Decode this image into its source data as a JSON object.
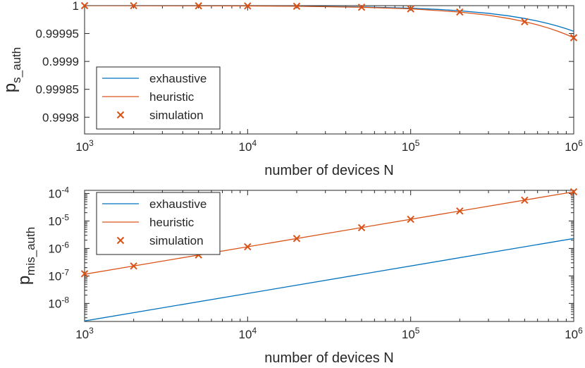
{
  "chart_data": [
    {
      "type": "line",
      "xscale": "log",
      "yscale": "linear",
      "xlim": [
        1000,
        1000000
      ],
      "ylim": [
        0.99977,
        1.0
      ],
      "xlabel": "number of devices N",
      "ylabel_main": "p",
      "ylabel_sub": "s_auth",
      "x_ticks": [
        {
          "base": "10",
          "exp": "3",
          "value": 1000
        },
        {
          "base": "10",
          "exp": "4",
          "value": 10000
        },
        {
          "base": "10",
          "exp": "5",
          "value": 100000
        },
        {
          "base": "10",
          "exp": "6",
          "value": 1000000
        }
      ],
      "y_ticks": [
        {
          "label": "1",
          "value": 1.0
        },
        {
          "label": "0.99995",
          "value": 0.99995
        },
        {
          "label": "0.9999",
          "value": 0.9999
        },
        {
          "label": "0.99985",
          "value": 0.99985
        },
        {
          "label": "0.9998",
          "value": 0.9998
        }
      ],
      "grid": false,
      "legend": {
        "position": "bottom-left",
        "entries": [
          "exhaustive",
          "heuristic",
          "simulation"
        ]
      },
      "series": [
        {
          "name": "exhaustive",
          "style": "line",
          "color": "#0072BD",
          "x": [
            1000,
            2000,
            5000,
            10000,
            20000,
            50000,
            100000,
            150000,
            200000,
            300000,
            400000,
            500000,
            600000,
            700000,
            800000,
            900000,
            1000000
          ],
          "y": [
            1.0,
            1.0,
            0.99999977,
            0.99999954,
            0.99999908,
            0.9999977,
            0.9999954,
            0.9999931,
            0.9999908,
            0.9999862,
            0.9999816,
            0.999977,
            0.9999724,
            0.9999678,
            0.9999632,
            0.9999586,
            0.999954
          ]
        },
        {
          "name": "heuristic",
          "style": "line",
          "color": "#D95319",
          "x": [
            1000,
            2000,
            5000,
            10000,
            20000,
            50000,
            100000,
            200000,
            300000,
            400000,
            500000,
            600000,
            700000,
            800000,
            900000,
            1000000
          ],
          "y": [
            1.0,
            0.99999989,
            0.9999997,
            0.99999943,
            0.99999885,
            0.9999971,
            0.9999943,
            0.9999885,
            0.9999828,
            0.999977,
            0.9999712,
            0.9999655,
            0.9999598,
            0.999954,
            0.9999483,
            0.9999425
          ]
        },
        {
          "name": "simulation",
          "style": "marker-x",
          "color": "#D95319",
          "x": [
            1000,
            2000,
            5000,
            10000,
            20000,
            50000,
            100000,
            200000,
            500000,
            1000000
          ],
          "y": [
            1.0,
            0.9999999,
            0.9999997,
            0.9999994,
            0.9999989,
            0.9999971,
            0.9999943,
            0.9999885,
            0.9999712,
            0.9999425
          ]
        }
      ]
    },
    {
      "type": "line",
      "xscale": "log",
      "yscale": "log",
      "xlim": [
        1000,
        1000000
      ],
      "ylim": [
        2.2e-09,
        0.00013
      ],
      "xlabel": "number of devices N",
      "ylabel_main": "p",
      "ylabel_sub": "mis_auth",
      "x_ticks": [
        {
          "base": "10",
          "exp": "3",
          "value": 1000
        },
        {
          "base": "10",
          "exp": "4",
          "value": 10000
        },
        {
          "base": "10",
          "exp": "5",
          "value": 100000
        },
        {
          "base": "10",
          "exp": "6",
          "value": 1000000
        }
      ],
      "y_ticks": [
        {
          "base": "10",
          "exp": "-4",
          "value": 0.0001
        },
        {
          "base": "10",
          "exp": "-5",
          "value": 1e-05
        },
        {
          "base": "10",
          "exp": "-6",
          "value": 1e-06
        },
        {
          "base": "10",
          "exp": "-7",
          "value": 1e-07
        },
        {
          "base": "10",
          "exp": "-8",
          "value": 1e-08
        }
      ],
      "grid": false,
      "legend": {
        "position": "top-left",
        "entries": [
          "exhaustive",
          "heuristic",
          "simulation"
        ]
      },
      "series": [
        {
          "name": "exhaustive",
          "style": "line",
          "color": "#0072BD",
          "x": [
            1000,
            1000000
          ],
          "y": [
            2.3e-09,
            2.3e-06
          ]
        },
        {
          "name": "heuristic",
          "style": "line",
          "color": "#D95319",
          "x": [
            1000,
            1000000
          ],
          "y": [
            1.15e-07,
            0.000115
          ]
        },
        {
          "name": "simulation",
          "style": "marker-x",
          "color": "#D95319",
          "x": [
            1000,
            2000,
            5000,
            10000,
            20000,
            50000,
            100000,
            200000,
            500000,
            1000000
          ],
          "y": [
            1.2e-07,
            2.3e-07,
            5.8e-07,
            1.15e-06,
            2.3e-06,
            5.7e-06,
            1.15e-05,
            2.3e-05,
            5.7e-05,
            0.000115
          ]
        }
      ]
    }
  ]
}
